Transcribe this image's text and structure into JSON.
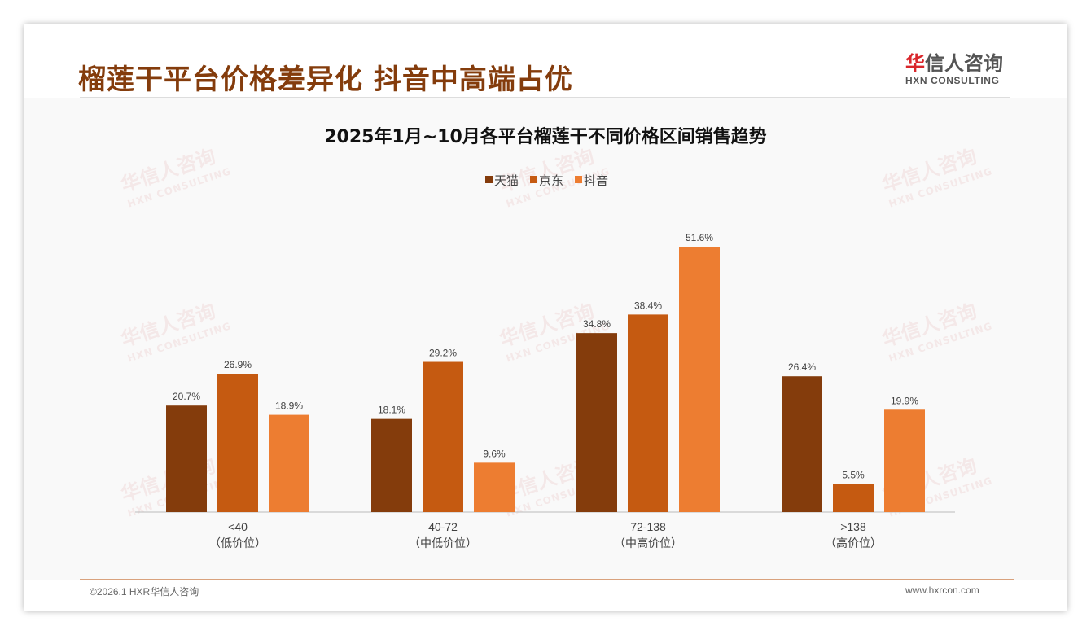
{
  "header": {
    "title": "榴莲干平台价格差异化 抖音中高端占优",
    "logo_cn_mark": "华",
    "logo_cn_rest": "信人咨询",
    "logo_en": "HXN CONSULTING"
  },
  "footer": {
    "copyright": "©2026.1 HXR华信人咨询",
    "website": "www.hxrcon.com"
  },
  "colors": {
    "tmall": "#843C0C",
    "jd": "#C55A11",
    "douyin": "#ED7D31",
    "title": "#843C0C"
  },
  "chart_data": {
    "type": "bar",
    "title": "2025年1月~10月各平台榴莲干不同价格区间销售趋势",
    "categories": [
      "<40",
      "40-72",
      "72-138",
      ">138"
    ],
    "category_sublabels": [
      "（低价位）",
      "（中低价位）",
      "（中高价位）",
      "（高价位）"
    ],
    "series": [
      {
        "name": "天猫",
        "values": [
          20.7,
          18.1,
          34.8,
          26.4
        ],
        "labels": [
          "20.7%",
          "18.1%",
          "34.8%",
          "26.4%"
        ]
      },
      {
        "name": "京东",
        "values": [
          26.9,
          29.2,
          38.4,
          5.5
        ],
        "labels": [
          "26.9%",
          "29.2%",
          "38.4%",
          "5.5%"
        ]
      },
      {
        "name": "抖音",
        "values": [
          18.9,
          9.6,
          51.6,
          19.9
        ],
        "labels": [
          "18.9%",
          "9.6%",
          "51.6%",
          "19.9%"
        ]
      }
    ],
    "legend_position": "top-center",
    "ylim": [
      0,
      55
    ],
    "grid": false,
    "unit": "%"
  }
}
